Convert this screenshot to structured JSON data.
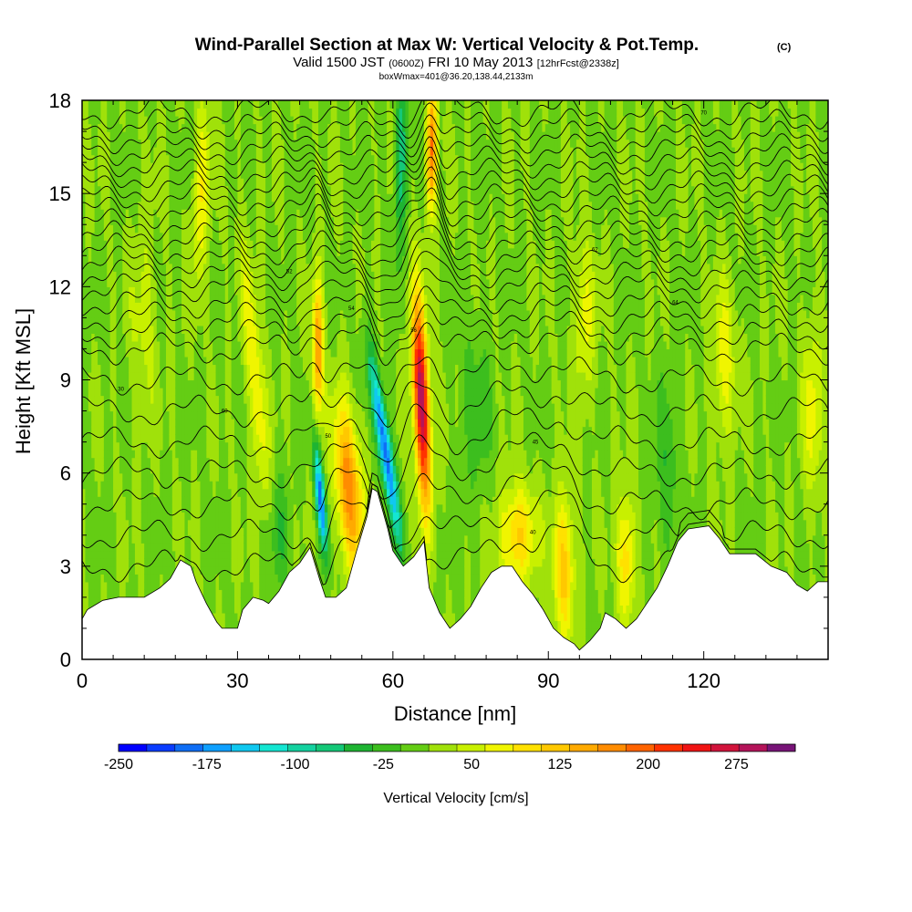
{
  "header": {
    "title": "Wind-Parallel Section at Max W: Vertical Velocity & Pot.Temp.",
    "copyright": "(C)",
    "valid_prefix": "Valid 1500 JST",
    "valid_utc": "(0600Z)",
    "valid_date": "FRI 10 May 2013",
    "forecast": "[12hrFcst@2338z]",
    "box_info": "boxWmax=401@36.20,138.44,2133m"
  },
  "chart_data": {
    "type": "heatmap",
    "xlabel": "Distance [nm]",
    "ylabel": "Height [Kft MSL]",
    "xlim": [
      0,
      144
    ],
    "ylim": [
      0,
      18
    ],
    "x_ticks": [
      "0",
      "30",
      "60",
      "90",
      "120"
    ],
    "x_tick_values": [
      0,
      30,
      60,
      90,
      120
    ],
    "y_ticks": [
      "0",
      "3",
      "6",
      "9",
      "12",
      "15",
      "18"
    ],
    "y_tick_values": [
      0,
      3,
      6,
      9,
      12,
      15,
      18
    ],
    "colorbar": {
      "title": "Vertical Velocity [cm/s]",
      "range": [
        -250,
        325
      ],
      "step": 25,
      "labels": [
        "-250",
        "-175",
        "-100",
        "-25",
        "50",
        "125",
        "200",
        "275"
      ],
      "label_values": [
        -250,
        -175,
        -100,
        -25,
        50,
        125,
        200,
        275
      ],
      "colors": [
        "#0000ff",
        "#0a3cff",
        "#0f6ef5",
        "#0fa0ff",
        "#10c8f0",
        "#14e6d2",
        "#14d2a0",
        "#14c878",
        "#1eb432",
        "#3cbe1e",
        "#64cd14",
        "#a0e10a",
        "#c8f000",
        "#f0f500",
        "#ffe100",
        "#ffc800",
        "#ffaa00",
        "#ff8c00",
        "#ff6400",
        "#ff3200",
        "#f01414",
        "#d2143c",
        "#b4145a",
        "#781478"
      ]
    },
    "terrain_kft": [
      [
        0,
        1.3
      ],
      [
        1,
        1.6
      ],
      [
        4,
        1.9
      ],
      [
        7,
        2.0
      ],
      [
        12,
        2.0
      ],
      [
        15,
        2.3
      ],
      [
        17,
        2.6
      ],
      [
        19,
        3.2
      ],
      [
        21,
        3.0
      ],
      [
        22,
        2.5
      ],
      [
        24,
        1.8
      ],
      [
        26,
        1.2
      ],
      [
        27,
        1.0
      ],
      [
        30,
        1.0
      ],
      [
        31,
        1.6
      ],
      [
        33,
        2.0
      ],
      [
        35,
        1.9
      ],
      [
        36,
        1.8
      ],
      [
        38,
        2.2
      ],
      [
        40,
        2.8
      ],
      [
        42,
        3.1
      ],
      [
        44,
        3.6
      ],
      [
        46,
        2.5
      ],
      [
        47,
        2.0
      ],
      [
        49,
        2.0
      ],
      [
        51,
        2.3
      ],
      [
        53,
        3.5
      ],
      [
        55,
        4.6
      ],
      [
        56,
        5.5
      ],
      [
        57,
        5.4
      ],
      [
        59,
        4.2
      ],
      [
        60,
        3.5
      ],
      [
        62,
        3.0
      ],
      [
        64,
        3.3
      ],
      [
        66,
        3.8
      ],
      [
        67,
        2.3
      ],
      [
        69,
        1.5
      ],
      [
        71,
        1.0
      ],
      [
        73,
        1.3
      ],
      [
        75,
        1.7
      ],
      [
        77,
        2.3
      ],
      [
        79,
        2.8
      ],
      [
        81,
        3.0
      ],
      [
        83,
        3.0
      ],
      [
        85,
        2.5
      ],
      [
        87,
        2.1
      ],
      [
        89,
        1.6
      ],
      [
        91,
        1.0
      ],
      [
        93,
        0.7
      ],
      [
        95,
        0.5
      ],
      [
        96,
        0.3
      ],
      [
        98,
        0.6
      ],
      [
        100,
        1.0
      ],
      [
        101,
        1.5
      ],
      [
        103,
        1.3
      ],
      [
        105,
        1.0
      ],
      [
        107,
        1.3
      ],
      [
        109,
        1.8
      ],
      [
        111,
        2.3
      ],
      [
        113,
        3.0
      ],
      [
        115,
        3.8
      ],
      [
        117,
        4.2
      ],
      [
        121,
        4.3
      ],
      [
        123,
        3.9
      ],
      [
        125,
        3.4
      ],
      [
        130,
        3.4
      ],
      [
        133,
        3.0
      ],
      [
        136,
        2.8
      ],
      [
        138,
        2.4
      ],
      [
        140,
        2.2
      ],
      [
        142,
        2.5
      ],
      [
        144,
        2.5
      ]
    ],
    "w_features": [
      {
        "x": 65.5,
        "z": 8.3,
        "w": 300,
        "sx": 1.5,
        "sz": 3.2,
        "tilt": -0.25
      },
      {
        "x": 67.5,
        "z": 16.5,
        "w": 180,
        "sx": 1.0,
        "sz": 2.0,
        "tilt": 0.1
      },
      {
        "x": 58.5,
        "z": 6.8,
        "w": -220,
        "sx": 1.3,
        "sz": 2.8,
        "tilt": -0.9
      },
      {
        "x": 46.0,
        "z": 5.2,
        "w": -210,
        "sx": 0.9,
        "sz": 1.7,
        "tilt": -0.5
      },
      {
        "x": 51.5,
        "z": 5.5,
        "w": 170,
        "sx": 2.5,
        "sz": 2.6,
        "tilt": -0.4
      },
      {
        "x": 45.5,
        "z": 10.0,
        "w": 160,
        "sx": 1.0,
        "sz": 2.2,
        "tilt": 0.0
      },
      {
        "x": 33.5,
        "z": 9.0,
        "w": 80,
        "sx": 1.6,
        "sz": 4.0,
        "tilt": -0.5
      },
      {
        "x": 23.0,
        "z": 15.0,
        "w": 70,
        "sx": 1.6,
        "sz": 3.0,
        "tilt": 0.2
      },
      {
        "x": 61.5,
        "z": 16.0,
        "w": -90,
        "sx": 1.2,
        "sz": 3.0,
        "tilt": 0.1
      },
      {
        "x": 84.0,
        "z": 4.0,
        "w": 110,
        "sx": 3.5,
        "sz": 1.6,
        "tilt": 0.0
      },
      {
        "x": 93.0,
        "z": 3.0,
        "w": 120,
        "sx": 2.0,
        "sz": 2.2,
        "tilt": 0.0
      },
      {
        "x": 105.0,
        "z": 3.3,
        "w": 100,
        "sx": 1.8,
        "sz": 2.0,
        "tilt": 0.0
      },
      {
        "x": 97.0,
        "z": 11.0,
        "w": 60,
        "sx": 2.0,
        "sz": 2.5,
        "tilt": 0.0
      },
      {
        "x": 124.0,
        "z": 9.5,
        "w": 70,
        "sx": 2.0,
        "sz": 2.5,
        "tilt": 0.0
      },
      {
        "x": 141.0,
        "z": 8.0,
        "w": 60,
        "sx": 2.0,
        "sz": 3.0,
        "tilt": 0.0
      },
      {
        "x": 12.0,
        "z": 11.0,
        "w": 40,
        "sx": 2.5,
        "sz": 3.0,
        "tilt": 0.0
      },
      {
        "x": 38.0,
        "z": 4.0,
        "w": -45,
        "sx": 2.0,
        "sz": 2.0,
        "tilt": 0.0
      },
      {
        "x": 76.0,
        "z": 8.0,
        "w": -35,
        "sx": 3.0,
        "sz": 3.0,
        "tilt": 0.0
      },
      {
        "x": 113.0,
        "z": 6.0,
        "w": -40,
        "sx": 2.5,
        "sz": 3.0,
        "tilt": 0.0
      }
    ],
    "theta_contours": {
      "levels_kft": [
        3.0,
        4.0,
        5.0,
        6.0,
        7.0,
        8.0,
        9.0,
        10.0,
        10.5,
        11.0,
        11.5,
        12.0,
        12.4,
        12.8,
        13.2,
        13.6,
        14.0,
        14.4,
        14.8,
        15.2,
        15.6,
        16.0,
        16.4,
        16.8,
        17.2,
        17.6
      ],
      "labels": [
        {
          "text": "30",
          "x": 7.5,
          "z": 8.7
        },
        {
          "text": "50",
          "x": 47.5,
          "z": 7.2
        },
        {
          "text": "52",
          "x": 40.0,
          "z": 12.5
        },
        {
          "text": "54",
          "x": 52.0,
          "z": 11.3
        },
        {
          "text": "56",
          "x": 64.0,
          "z": 10.6
        },
        {
          "text": "45",
          "x": 87.5,
          "z": 7.0
        },
        {
          "text": "40",
          "x": 87.0,
          "z": 4.1
        },
        {
          "text": "60",
          "x": 27.5,
          "z": 8.0
        },
        {
          "text": "62",
          "x": 99.0,
          "z": 13.2
        },
        {
          "text": "64",
          "x": 114.5,
          "z": 11.5
        },
        {
          "text": "70",
          "x": 120.0,
          "z": 17.6
        }
      ]
    }
  }
}
